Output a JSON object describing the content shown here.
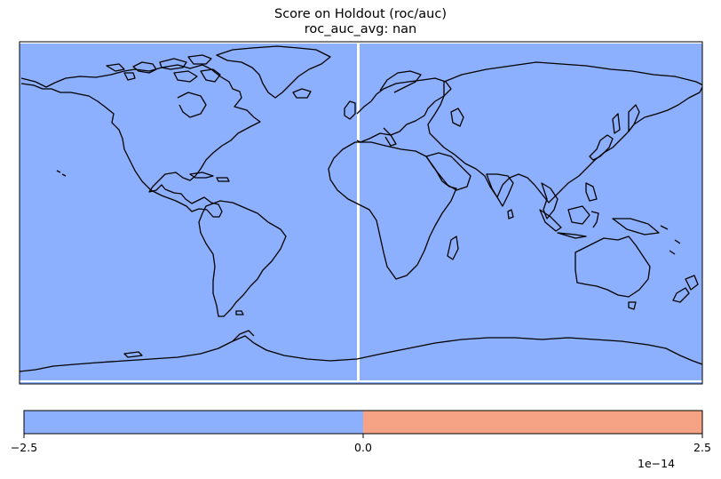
{
  "title_line1": "Score on Holdout (roc/auc)",
  "title_line2": "roc_auc_avg: nan",
  "map_fill_color": "#8db0fe",
  "coastline_color": "#000000",
  "colorbar": {
    "colors": [
      "#8db0fe",
      "#f6a385"
    ],
    "ticks": [
      "−2.5",
      "0.0",
      "2.5"
    ],
    "offset_label": "1e−14"
  }
}
